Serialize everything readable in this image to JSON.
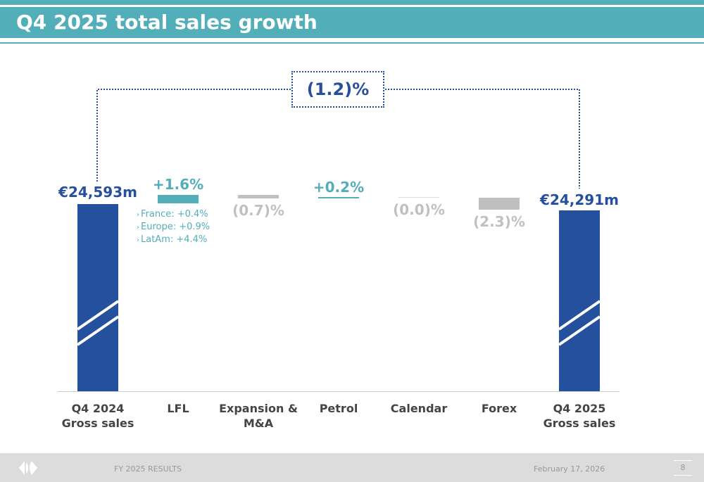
{
  "header": {
    "title": "Q4 2025 total sales growth"
  },
  "chart_data": {
    "type": "waterfall",
    "categories": [
      "Q4 2024\nGross sales",
      "LFL",
      "Expansion &\nM&A",
      "Petrol",
      "Calendar",
      "Forex",
      "Q4 2025\nGross sales"
    ],
    "values": [
      24593,
      1.6,
      -0.7,
      0.2,
      0.0,
      -2.3,
      24291
    ],
    "value_labels": [
      "€24,593m",
      "+1.6%",
      "(0.7)%",
      "+0.2%",
      "(0.0)%",
      "(2.3)%",
      "€24,291m"
    ],
    "total_change_label": "(1.2)%",
    "lfl_breakdown": [
      "France: +0.4%",
      "Europe: +0.9%",
      "LatAm: +4.4%"
    ],
    "colors": {
      "total": "#25509e",
      "positive": "#52aeb9",
      "negative": "#c0c0c0"
    },
    "axis_break": true
  },
  "footer": {
    "left": "FY 2025 RESULTS",
    "date": "February 17, 2026",
    "page": "8"
  }
}
